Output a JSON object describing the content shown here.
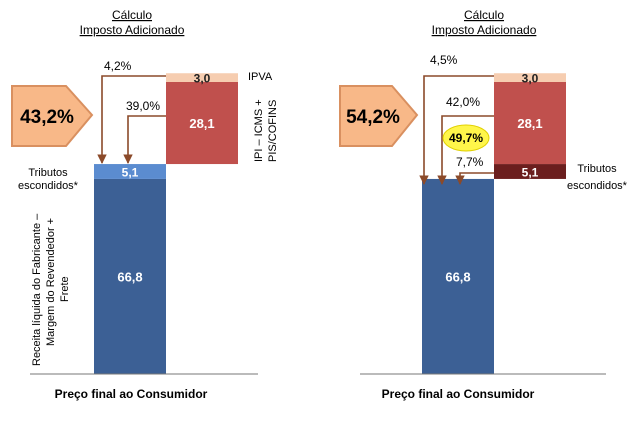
{
  "charts": [
    {
      "header_line1": "Cálculo",
      "header_line2": "Imposto Adicionado",
      "big_label": "43,2%",
      "pct_labels": [
        "4,2%",
        "39,0%"
      ],
      "side_label_ipva": "IPVA",
      "side_label_ipi": "IPI – ICMS +",
      "side_label_pis": "PIS/COFINS",
      "hidden_label_line1": "Tributos",
      "hidden_label_line2": "escondidos*",
      "y_label_line1": "Receita líquida do Fabricante –",
      "y_label_line2": "Margem do Revendedor +",
      "y_label_line3": "Frete",
      "xlabel": "Preço final ao Consumidor"
    },
    {
      "header_line1": "Cálculo",
      "header_line2": "Imposto Adicionado",
      "big_label": "54,2%",
      "pct_labels": [
        "4,5%",
        "42,0%",
        "7,7%"
      ],
      "highlight_label": "49,7%",
      "hidden_label_line1": "Tributos",
      "hidden_label_line2": "escondidos*",
      "xlabel": "Preço final ao Consumidor"
    }
  ],
  "colors": {
    "blue": "#3C6095",
    "light_blue": "#5B8CD0",
    "red": "#C0504D",
    "peach": "#F6CDB0",
    "dark_red": "#6B1E1E",
    "orange": "#F8B888",
    "orange_border": "#D99060",
    "arrow": "#8B4A2A",
    "highlight": "#FFF64A"
  },
  "chart_data": [
    {
      "type": "bar",
      "categories": [
        "Preço final ao Consumidor",
        "Imposto Adicionado"
      ],
      "series": [
        {
          "values": [
            66.8,
            0
          ]
        },
        {
          "values": [
            5.1,
            0
          ]
        },
        {
          "values": [
            0,
            28.1
          ]
        },
        {
          "values": [
            0,
            3.0
          ]
        }
      ],
      "xlabel": "Preço final ao Consumidor",
      "ylabel": "Receita líquida do Fabricante – Margem do Revendedor + Frete"
    },
    {
      "type": "bar",
      "categories": [
        "Preço final ao Consumidor",
        "Imposto Adicionado"
      ],
      "series": [
        {
          "values": [
            66.8,
            0
          ]
        },
        {
          "values": [
            0,
            5.1
          ]
        },
        {
          "values": [
            0,
            28.1
          ]
        },
        {
          "values": [
            0,
            3.0
          ]
        }
      ],
      "xlabel": "Preço final ao Consumidor",
      "ylabel": ""
    }
  ]
}
